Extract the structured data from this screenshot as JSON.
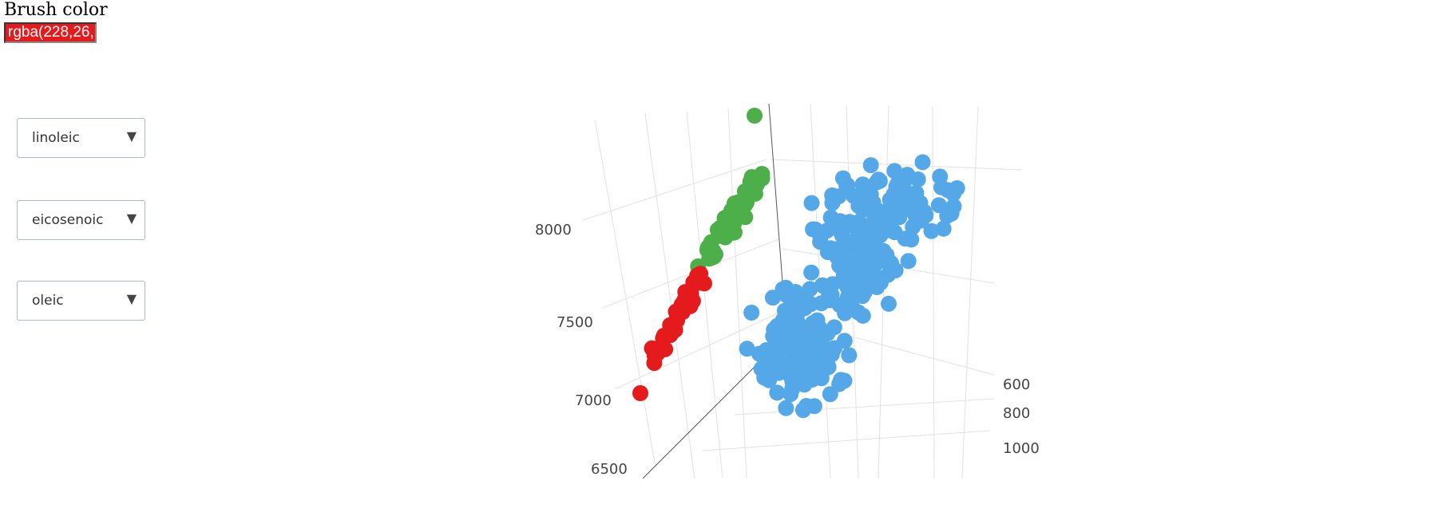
{
  "brush": {
    "label": "Brush color",
    "value": "rgba(228,26,",
    "color": "#e41a1c"
  },
  "dropdowns": [
    {
      "label": "linoleic",
      "arrow": "▼"
    },
    {
      "label": "eicosenoic",
      "arrow": "▼"
    },
    {
      "label": "oleic",
      "arrow": "▼"
    }
  ],
  "chart_data": {
    "type": "scatter",
    "title": "",
    "axes": {
      "x": "linoleic",
      "y": "eicosenoic",
      "z": "oleic"
    },
    "z_ticks": [
      "8000",
      "7500",
      "7000",
      "6500"
    ],
    "depth_ticks": [
      "600",
      "800",
      "1000"
    ],
    "grid": true,
    "series": [
      {
        "color": "#e41a1c",
        "count": 38
      },
      {
        "color": "#4daf4a",
        "count": 60
      },
      {
        "color": "#54a8e8",
        "count": 320
      }
    ]
  }
}
